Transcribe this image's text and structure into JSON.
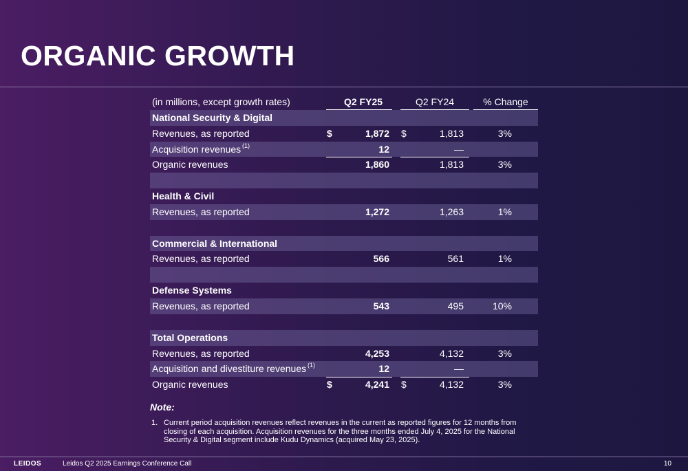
{
  "title": "ORGANIC GROWTH",
  "table": {
    "header": {
      "label": "(in millions, except growth rates)",
      "col1": "Q2 FY25",
      "col2": "Q2 FY24",
      "col3": "% Change"
    },
    "rows": [
      {
        "label": "National Security & Digital",
        "bold_label": true,
        "shade": true
      },
      {
        "label": "Revenues, as reported",
        "sign1": "$",
        "c1": "1,872",
        "sign2": "$",
        "c2": "1,813",
        "c3": "3%"
      },
      {
        "label": "Acquisition revenues",
        "sup": "(1)",
        "c1": "12",
        "c2": "—",
        "c3": "",
        "shade": true
      },
      {
        "label": "Organic revenues",
        "c1": "1,860",
        "c2": "1,813",
        "c3": "3%"
      },
      {
        "label": "",
        "shade": true
      },
      {
        "label": "Health & Civil",
        "bold_label": true
      },
      {
        "label": "Revenues, as reported",
        "c1": "1,272",
        "c2": "1,263",
        "c3": "1%",
        "shade": true
      },
      {
        "label": ""
      },
      {
        "label": "Commercial & International",
        "bold_label": true,
        "shade": true
      },
      {
        "label": "Revenues, as reported",
        "c1": "566",
        "c2": "561",
        "c3": "1%"
      },
      {
        "label": "",
        "shade": true
      },
      {
        "label": "Defense Systems",
        "bold_label": true
      },
      {
        "label": "Revenues, as reported",
        "c1": "543",
        "c2": "495",
        "c3": "10%",
        "shade": true
      },
      {
        "label": ""
      },
      {
        "label": "Total Operations",
        "bold_label": true,
        "shade": true
      },
      {
        "label": "Revenues, as reported",
        "c1": "4,253",
        "c2": "4,132",
        "c3": "3%"
      },
      {
        "label": "Acquisition and divestiture revenues",
        "sup": "(1)",
        "c1": "12",
        "c2": "—",
        "c3": "",
        "shade": true
      },
      {
        "label": "Organic revenues",
        "sign1": "$",
        "c1": "4,241",
        "sign2": "$",
        "c2": "4,132",
        "c3": "3%"
      }
    ]
  },
  "note": {
    "title": "Note:",
    "number": "1.",
    "text": "Current period acquisition revenues reflect revenues in the current as reported figures for 12 months from closing of each acquisition. Acquisition revenues for the three months ended July 4, 2025 for the National Security & Digital segment include Kudu Dynamics (acquired May 23, 2025)."
  },
  "footer": {
    "logo": "LEIDOS",
    "text": "Leidos Q2 2025 Earnings Conference Call",
    "page": "10"
  }
}
